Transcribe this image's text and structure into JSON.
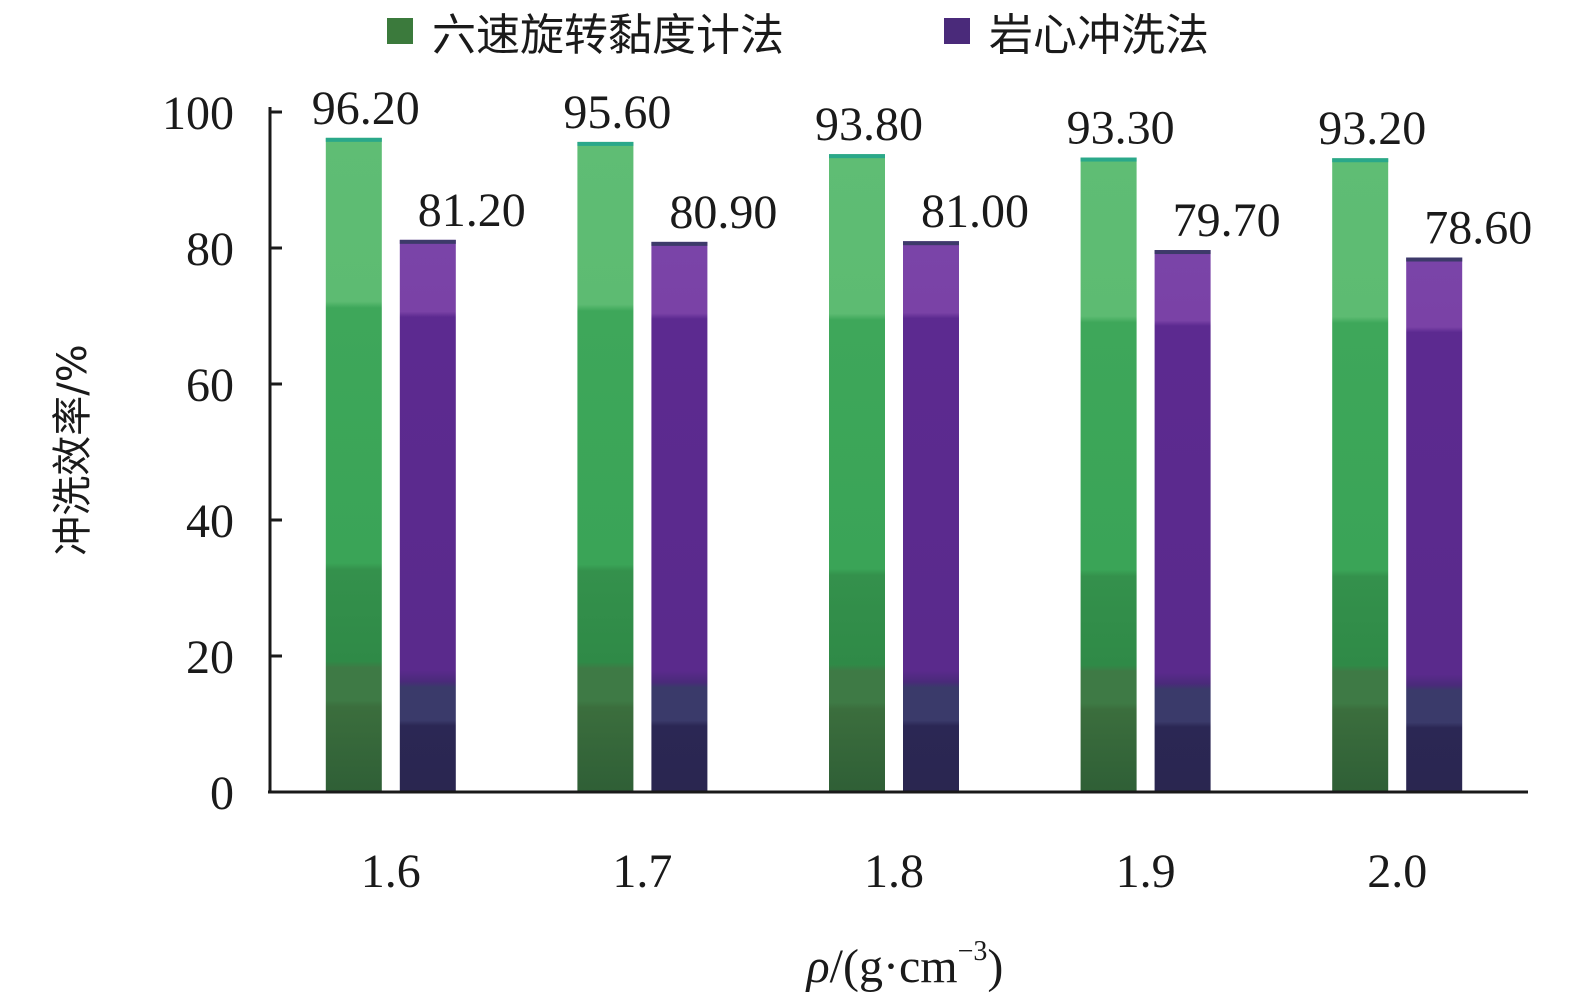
{
  "chart_data": {
    "type": "bar",
    "categories": [
      "1.6",
      "1.7",
      "1.8",
      "1.9",
      "2.0"
    ],
    "series": [
      {
        "name": "六速旋转黏度计法",
        "values": [
          96.2,
          95.6,
          93.8,
          93.3,
          93.2
        ],
        "labels": [
          "96.20",
          "95.60",
          "93.80",
          "93.30",
          "93.20"
        ],
        "color": "#3aa457"
      },
      {
        "name": "岩心冲洗法",
        "values": [
          81.2,
          80.9,
          81.0,
          79.7,
          78.6
        ],
        "labels": [
          "81.20",
          "80.90",
          "81.00",
          "79.70",
          "78.60"
        ],
        "color": "#5c2a90"
      }
    ],
    "xlabel_symbol": "ρ",
    "xlabel_unit_open": "/(g·cm",
    "xlabel_unit_exp": "−3",
    "xlabel_unit_close": ")",
    "ylabel": "冲洗效率/%",
    "yticks": [
      "0",
      "20",
      "40",
      "60",
      "80",
      "100"
    ],
    "ylim": [
      0,
      100
    ],
    "grid": false,
    "legend_position": "top"
  }
}
